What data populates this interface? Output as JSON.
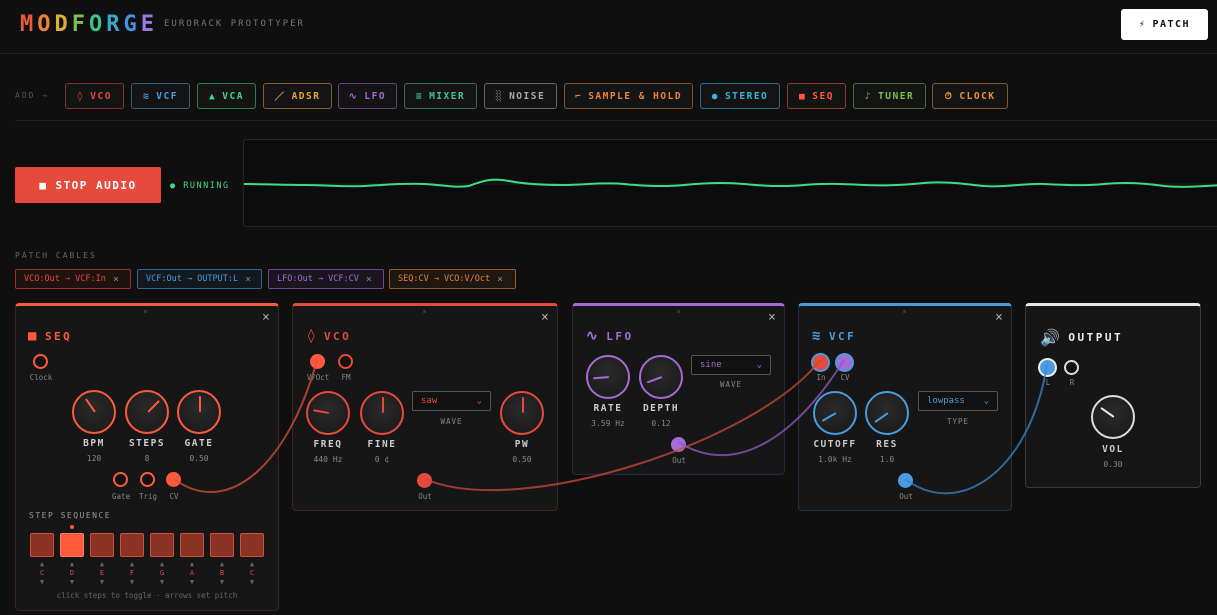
{
  "header": {
    "brand": [
      "M",
      "O",
      "D",
      "F",
      "O",
      "R",
      "G",
      "E"
    ],
    "brand_colors": [
      "#e85c3a",
      "#e8833a",
      "#d9b13a",
      "#7cc24a",
      "#3dc08a",
      "#3aa7c9",
      "#4a8fe0",
      "#9a7be0"
    ],
    "subtitle": "EURORACK PROTOTYPER",
    "patch_icon": "⚡",
    "patch_label": "PATCH"
  },
  "add_row": {
    "label": "ADD →",
    "buttons": [
      {
        "icon": "◊",
        "label": "VCO",
        "color": "#e54a3c"
      },
      {
        "icon": "≋",
        "label": "VCF",
        "color": "#4a9be0"
      },
      {
        "icon": "▲",
        "label": "VCA",
        "color": "#3ddc84"
      },
      {
        "icon": "／",
        "label": "ADSR",
        "color": "#e8a33a"
      },
      {
        "icon": "∿",
        "label": "LFO",
        "color": "#a66bd6"
      },
      {
        "icon": "≡",
        "label": "MIXER",
        "color": "#3dc0a0"
      },
      {
        "icon": "░",
        "label": "NOISE",
        "color": "#aaaaaa"
      },
      {
        "icon": "⌐",
        "label": "SAMPLE & HOLD",
        "color": "#e8833a"
      },
      {
        "icon": "●",
        "label": "STEREO",
        "color": "#3ab5d9"
      },
      {
        "icon": "■",
        "label": "SEQ",
        "color": "#ff5a3c"
      },
      {
        "icon": "♪",
        "label": "TUNER",
        "color": "#7cc24a"
      },
      {
        "icon": "⏱",
        "label": "CLOCK",
        "color": "#e8933a"
      }
    ]
  },
  "audio": {
    "stop_icon": "■",
    "stop_label": "STOP AUDIO",
    "status": "● RUNNING"
  },
  "cables": {
    "label": "PATCH CABLES",
    "close_glyph": "×",
    "items": [
      {
        "label": "VCO:Out → VCF:In",
        "color": "#e54a3c"
      },
      {
        "label": "VCF:Out → OUTPUT:L",
        "color": "#4a9be0"
      },
      {
        "label": "LFO:Out → VCF:CV",
        "color": "#a66bd6"
      },
      {
        "label": "SEQ:CV → VCO:V/Oct",
        "color": "#e8833a"
      }
    ]
  },
  "modules": {
    "seq": {
      "icon": "■",
      "title": "SEQ",
      "color": "#ff5a3c",
      "clock_label": "Clock",
      "knobs": [
        {
          "label": "BPM",
          "value": "120"
        },
        {
          "label": "STEPS",
          "value": "8"
        },
        {
          "label": "GATE",
          "value": "0.50"
        }
      ],
      "outs": [
        "Gate",
        "Trig",
        "CV"
      ],
      "step_title": "STEP SEQUENCE",
      "steps": [
        "C",
        "D",
        "E",
        "F",
        "G",
        "A",
        "B",
        "C"
      ],
      "active_step": 1,
      "up_glyph": "▲",
      "down_glyph": "▼",
      "hint": "click steps to toggle · arrows set pitch"
    },
    "vco": {
      "icon": "◊",
      "title": "VCO",
      "color": "#e54a3c",
      "inputs": [
        "V/Oct",
        "FM"
      ],
      "knobs": [
        {
          "label": "FREQ",
          "value": "440 Hz"
        },
        {
          "label": "FINE",
          "value": "0 ¢"
        },
        {
          "label": "PW",
          "value": "0.50"
        }
      ],
      "wave": "saw",
      "wave_label": "WAVE",
      "out_label": "Out"
    },
    "lfo": {
      "icon": "∿",
      "title": "LFO",
      "color": "#a66bd6",
      "knobs": [
        {
          "label": "RATE",
          "value": "3.59 Hz"
        },
        {
          "label": "DEPTH",
          "value": "0.12"
        }
      ],
      "wave": "sine",
      "wave_label": "WAVE",
      "out_label": "Out"
    },
    "vcf": {
      "icon": "≋",
      "title": "VCF",
      "color": "#4a9be0",
      "inputs": [
        "In",
        "CV"
      ],
      "knobs": [
        {
          "label": "CUTOFF",
          "value": "1.0k Hz"
        },
        {
          "label": "RES",
          "value": "1.0"
        }
      ],
      "type": "lowpass",
      "type_label": "TYPE",
      "out_label": "Out"
    },
    "output": {
      "icon": "🔊",
      "title": "OUTPUT",
      "color": "#e8e8e8",
      "inputs": [
        "L",
        "R"
      ],
      "knob": {
        "label": "VOL",
        "value": "0.30"
      }
    }
  },
  "close_glyph": "×",
  "select_chevron": "⌄"
}
